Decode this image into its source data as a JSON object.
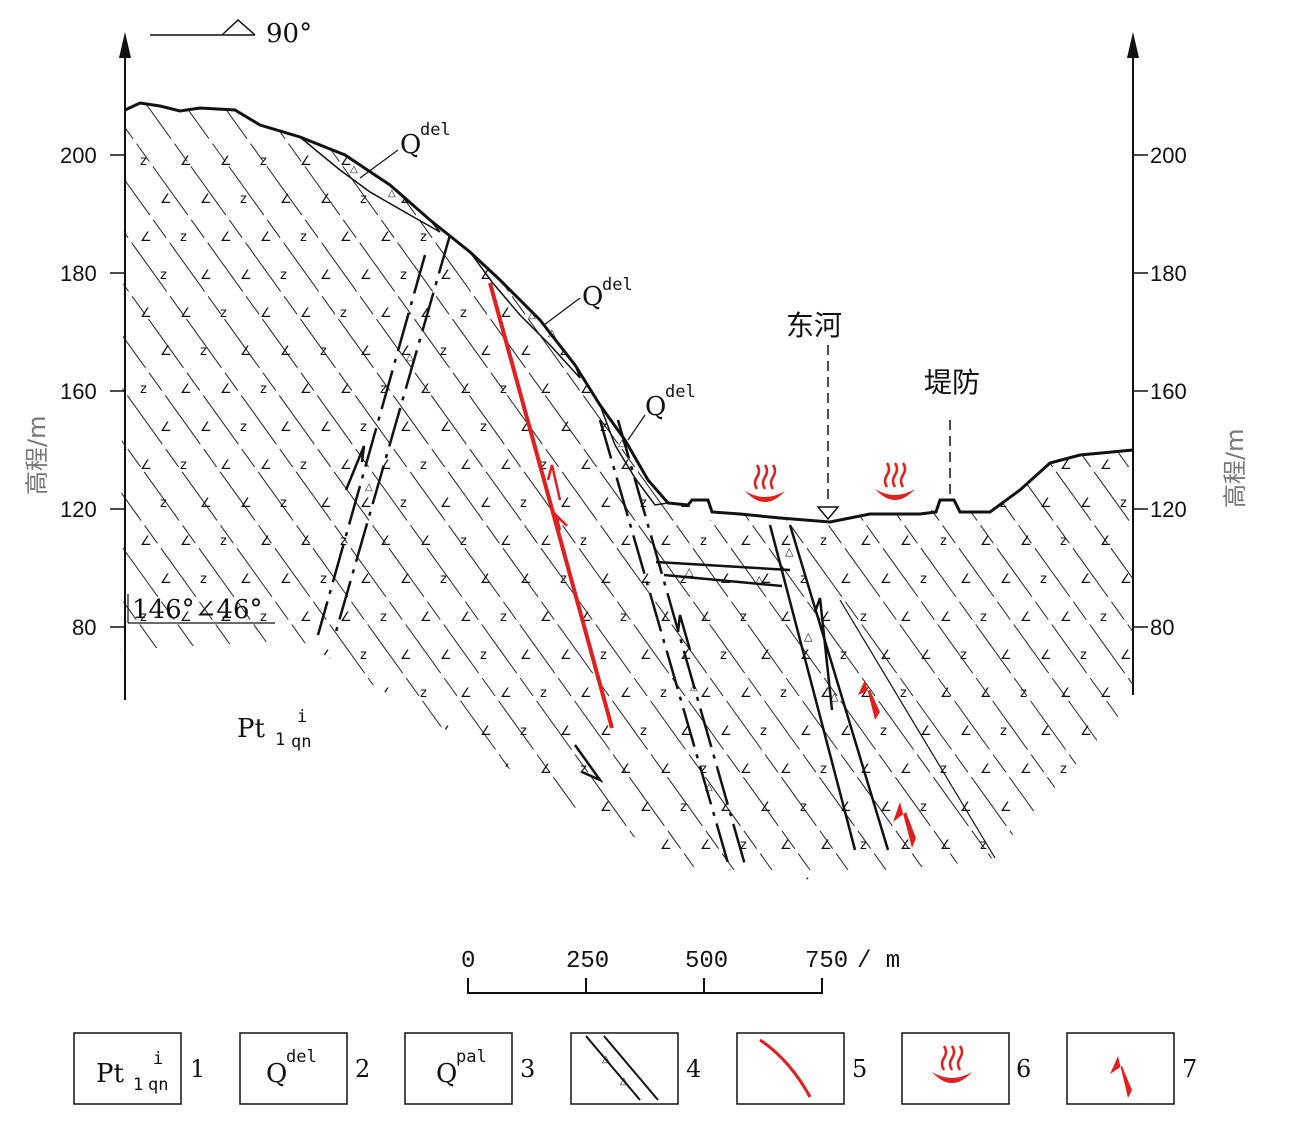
{
  "axis": {
    "title": "高程/m",
    "left_ticks": [
      "200",
      "180",
      "160",
      "120",
      "80"
    ],
    "right_ticks": [
      "200",
      "180",
      "160",
      "120",
      "80"
    ]
  },
  "orientation": {
    "label": "90°"
  },
  "attitude": {
    "label": "146°∠46°"
  },
  "deposits": [
    {
      "base": "Q",
      "sup": "del"
    },
    {
      "base": "Q",
      "sup": "del"
    },
    {
      "base": "Q",
      "sup": "del"
    }
  ],
  "places": {
    "river": "东河",
    "levee": "堤防"
  },
  "formation": {
    "base": "Pt",
    "sub": "1",
    "sup": "i",
    "subsub": "qn"
  },
  "scale": {
    "ticks": [
      "0",
      "250",
      "500",
      "750"
    ],
    "unit": "/ m"
  },
  "legend": [
    {
      "num": "1",
      "kind": "formation",
      "base": "Pt",
      "sub": "1",
      "sup": "i",
      "subsub": "qn"
    },
    {
      "num": "2",
      "kind": "deposit",
      "base": "Q",
      "sup": "del"
    },
    {
      "num": "3",
      "kind": "deposit",
      "base": "Q",
      "sup": "pal"
    },
    {
      "num": "4",
      "kind": "fracture-zone-icon"
    },
    {
      "num": "5",
      "kind": "fault-icon"
    },
    {
      "num": "6",
      "kind": "hot-spring-icon"
    },
    {
      "num": "7",
      "kind": "flow-arrow-icon"
    }
  ],
  "colors": {
    "fault": "#e02020",
    "hot_spring": "#e02020",
    "ink": "#111111"
  }
}
